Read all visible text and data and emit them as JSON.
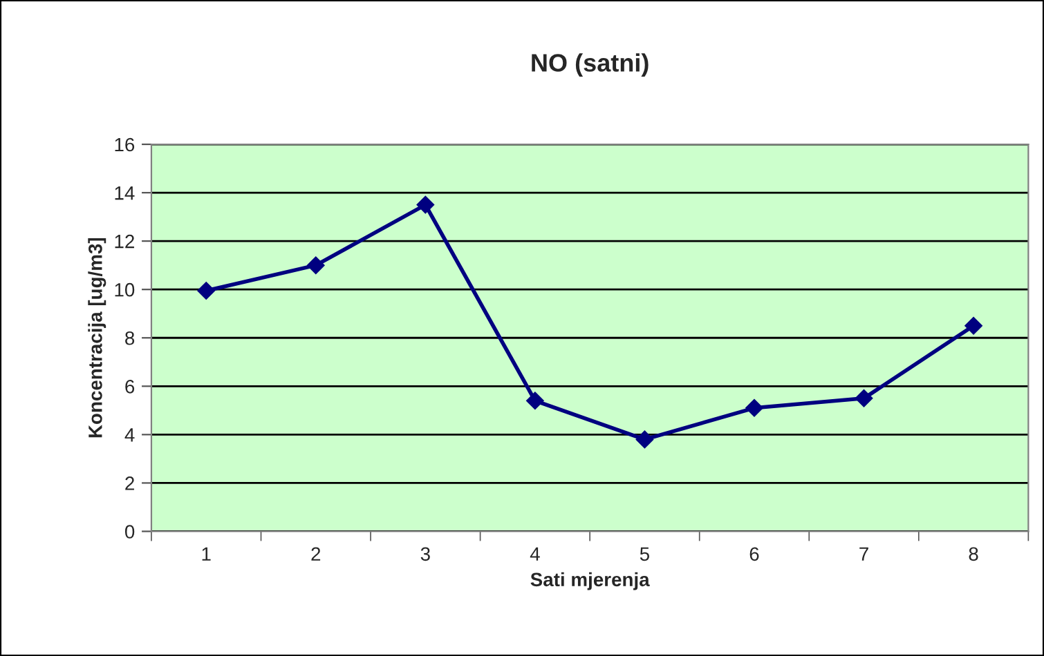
{
  "chart_data": {
    "type": "line",
    "title": "NO (satni)",
    "xlabel": "Sati mjerenja",
    "ylabel": "Koncentracija [ug/m3]",
    "categories": [
      "1",
      "2",
      "3",
      "4",
      "5",
      "6",
      "7",
      "8"
    ],
    "series": [
      {
        "color": "#000080",
        "values": [
          9.95,
          11.0,
          13.5,
          5.4,
          3.8,
          5.1,
          5.5,
          8.5
        ]
      }
    ],
    "ylim": [
      0,
      16
    ],
    "yticks": [
      0,
      2,
      4,
      6,
      8,
      10,
      12,
      14,
      16
    ],
    "grid": "y",
    "marker": "diamond",
    "line_style": "solid",
    "legend": false
  }
}
